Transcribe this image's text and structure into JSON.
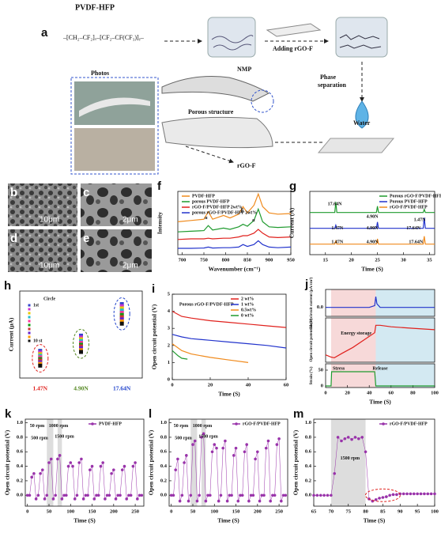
{
  "diagram": {
    "label": "a",
    "polymer": "PVDF-HFP",
    "formula": "–[CH₂–CF₂]ₓ–[CF₂–CF(CF₃)]ᵧ–",
    "solvent": "NMP",
    "step_add": "Adding rGO-F",
    "step_phase": [
      "Phase",
      "separation"
    ],
    "water": "Water",
    "photos": "Photos",
    "porous": "Porous structure",
    "filler": "rGO-F"
  },
  "images": [
    {
      "label": "b",
      "scale": "10μm"
    },
    {
      "label": "c",
      "scale": "2μm"
    },
    {
      "label": "d",
      "scale": "10μm"
    },
    {
      "label": "e",
      "scale": "2μm"
    }
  ],
  "chart_data": [
    {
      "type": "line",
      "label": "f",
      "xlabel": "Wavenumber (cm⁻¹)",
      "ylabel": "Intensity",
      "xlim": [
        690,
        950
      ],
      "ylim": [
        0,
        10
      ],
      "xticks": [
        700,
        750,
        800,
        850,
        900,
        950
      ],
      "legend": "upper left",
      "x": [
        690,
        720,
        750,
        760,
        770,
        795,
        810,
        830,
        840,
        850,
        865,
        875,
        885,
        900,
        920,
        950
      ],
      "series": [
        {
          "name": "PVDF-HFP",
          "color": "#f08a1c",
          "values": [
            5.2,
            5.4,
            5.6,
            6.8,
            5.6,
            6.2,
            5.8,
            6.4,
            7.6,
            6.6,
            7.8,
            9.6,
            7.6,
            6.6,
            6.4,
            6.5
          ]
        },
        {
          "name": "porous PVDF-HFP",
          "color": "#1f9a2e",
          "values": [
            3.6,
            3.7,
            3.8,
            4.6,
            3.9,
            4.2,
            4.0,
            4.4,
            4.8,
            4.5,
            5.4,
            7.2,
            5.2,
            4.4,
            4.3,
            4.4
          ]
        },
        {
          "name": "rGO-F/PVDF-HFP 2wt%",
          "color": "#e0201c",
          "values": [
            2.4,
            2.5,
            2.5,
            2.6,
            2.5,
            2.6,
            2.6,
            2.8,
            3.0,
            3.0,
            3.4,
            4.0,
            3.4,
            2.8,
            2.7,
            2.8
          ]
        },
        {
          "name": "porous rGO-F/PVDF-HFP 2wt%",
          "color": "#2233cc",
          "values": [
            1.0,
            1.0,
            1.05,
            1.2,
            1.05,
            1.1,
            1.1,
            1.2,
            1.6,
            1.3,
            1.6,
            2.2,
            1.6,
            1.2,
            1.1,
            1.2
          ]
        }
      ],
      "annotations": [
        "α",
        "β",
        "α"
      ]
    },
    {
      "type": "line",
      "label": "g",
      "xlabel": "Time (S)",
      "ylabel": "Current (A)",
      "xlim": [
        12,
        36
      ],
      "ylim": [
        0,
        12
      ],
      "xticks": [
        15,
        20,
        25,
        30,
        35
      ],
      "legend": "upper right",
      "x": [
        12,
        16.8,
        17,
        17.2,
        24.8,
        25,
        25.2,
        33.8,
        34,
        34.2,
        36
      ],
      "series": [
        {
          "name": "Porous rGO-F/PVDF-HFP",
          "color": "#1f9a2e",
          "values": [
            8,
            8,
            10,
            8,
            8,
            9.2,
            8,
            8,
            8.6,
            8,
            8
          ]
        },
        {
          "name": "Porous PVDF-HFP",
          "color": "#2233cc",
          "values": [
            5,
            5,
            5.6,
            5,
            5,
            6.2,
            5,
            5,
            7,
            5,
            5
          ]
        },
        {
          "name": "rGO-F/PVDF-HFP",
          "color": "#f08a1c",
          "values": [
            2,
            2,
            2.6,
            2,
            2,
            3,
            2,
            2,
            3.5,
            2,
            2
          ]
        }
      ],
      "annotations": [
        "17.64N",
        "4.90N",
        "1.47N",
        "1.47N",
        "4.90N",
        "17.64N",
        "1.47N",
        "4.90N",
        "17.64N"
      ]
    },
    {
      "type": "dot",
      "label": "h",
      "ylabel": "Current (μA)",
      "ylim": [
        0,
        4
      ],
      "legend": "upper left",
      "legend_title": "Circle",
      "categories": [
        "1.47N",
        "4.90N",
        "17.64N"
      ],
      "category_colors": [
        "#e0201c",
        "#558822",
        "#2244cc"
      ],
      "series": [
        {
          "name": "1st",
          "color": "#3344cc",
          "values": [
            1.25,
            1.95,
            3.4
          ]
        },
        {
          "color": "#cc33cc",
          "values": [
            1.17,
            1.86,
            3.3
          ]
        },
        {
          "color": "#e6c800",
          "values": [
            1.1,
            1.78,
            3.2
          ]
        },
        {
          "color": "#22bbcc",
          "values": [
            1.02,
            1.7,
            3.1
          ]
        },
        {
          "color": "#ff3399",
          "values": [
            0.95,
            1.62,
            3.0
          ]
        },
        {
          "color": "#119911",
          "values": [
            0.87,
            1.53,
            2.9
          ]
        },
        {
          "color": "#cc3333",
          "values": [
            0.8,
            1.45,
            2.8
          ]
        },
        {
          "color": "#6622cc",
          "values": [
            0.72,
            1.37,
            2.7
          ]
        },
        {
          "color": "#ff9900",
          "values": [
            0.65,
            1.28,
            2.6
          ]
        },
        {
          "name": "10 st",
          "color": "#111111",
          "values": [
            0.57,
            1.2,
            2.5
          ]
        }
      ]
    },
    {
      "type": "line",
      "label": "i",
      "xlabel": "Time (S)",
      "ylabel": "Open circuit potential (V)",
      "xlim": [
        0,
        60
      ],
      "ylim": [
        0,
        5
      ],
      "xticks": [
        0,
        20,
        40,
        60
      ],
      "yticks": [
        0,
        1,
        2,
        3,
        4,
        5
      ],
      "legend": "upper right",
      "series": [
        {
          "name": "2 wt%",
          "color": "#e0201c",
          "x": [
            0,
            5,
            10,
            20,
            30,
            40,
            50,
            60
          ],
          "values": [
            4.0,
            3.7,
            3.6,
            3.45,
            3.35,
            3.25,
            3.15,
            3.05
          ]
        },
        {
          "name": "1 wt%",
          "color": "#2233cc",
          "x": [
            0,
            5,
            10,
            20,
            30,
            40,
            50,
            60
          ],
          "values": [
            2.65,
            2.5,
            2.4,
            2.3,
            2.2,
            2.1,
            2.0,
            1.85
          ]
        },
        {
          "name": "0.5wt%",
          "color": "#f08a1c",
          "x": [
            0,
            5,
            10,
            20,
            30,
            40
          ],
          "values": [
            2.1,
            1.7,
            1.5,
            1.3,
            1.15,
            1.0
          ]
        },
        {
          "name": "0 wt%",
          "color": "#1f9a2e",
          "x": [
            0,
            3,
            5,
            8
          ],
          "values": [
            1.7,
            1.4,
            1.25,
            1.2
          ]
        }
      ],
      "annotations": [
        "Porous rGO-F/PVDF-HFP"
      ]
    },
    {
      "type": "line",
      "label": "j",
      "ylabel": "Short circuit current (μA/cm²)",
      "xlim": [
        0,
        100
      ],
      "ylim": [
        -0.5,
        1
      ],
      "yticks": [
        {
          "value": 0,
          "label": "0.0"
        }
      ],
      "shaded": [
        {
          "range": [
            5,
            46
          ],
          "color": "#f7d9d9"
        },
        {
          "range": [
            46,
            100
          ],
          "color": "#d3e9f2"
        }
      ],
      "x": [
        0,
        5,
        10,
        20,
        30,
        40,
        45,
        46,
        47,
        50,
        60,
        70,
        80,
        90,
        100
      ],
      "series": [
        {
          "color": "#2233cc",
          "values": [
            0,
            0,
            0,
            0,
            0,
            0,
            0.1,
            0.6,
            0.2,
            0,
            0,
            0,
            0,
            0,
            0
          ]
        }
      ]
    },
    {
      "type": "line",
      "ylabel": "Open circuit potential (V)",
      "xlim": [
        0,
        100
      ],
      "ylim": [
        -1,
        5
      ],
      "shaded": [
        {
          "range": [
            5,
            46
          ],
          "color": "#f7d9d9"
        },
        {
          "range": [
            46,
            100
          ],
          "color": "#d3e9f2"
        }
      ],
      "x": [
        0,
        5,
        8,
        15,
        25,
        35,
        45,
        46,
        50,
        60,
        80,
        100
      ],
      "series": [
        {
          "color": "#e0201c",
          "values": [
            0,
            -0.3,
            -0.4,
            0.2,
            1,
            2,
            3,
            4,
            4,
            3.8,
            3.6,
            3.4
          ]
        }
      ],
      "annotations": [
        "Energy storage"
      ]
    },
    {
      "type": "line",
      "xlabel": "Time (S)",
      "ylabel": "Strain (%)",
      "xlim": [
        0,
        100
      ],
      "ylim": [
        -5,
        70
      ],
      "xticks": [
        0,
        20,
        40,
        60,
        80,
        100
      ],
      "yticks": [
        0,
        50
      ],
      "shaded": [
        {
          "range": [
            5,
            46
          ],
          "color": "#f7d9d9"
        },
        {
          "range": [
            46,
            100
          ],
          "color": "#d3e9f2"
        }
      ],
      "x": [
        0,
        5,
        5.5,
        45,
        46,
        100
      ],
      "series": [
        {
          "color": "#1f9a2e",
          "values": [
            0,
            0,
            45,
            45,
            0,
            0
          ]
        }
      ],
      "annotations": [
        "Stress",
        "Release"
      ]
    },
    {
      "type": "line",
      "markers": true,
      "label": "k",
      "xlabel": "Time (S)",
      "ylabel": "Open circuit potential (V)",
      "xlim": [
        -5,
        270
      ],
      "ylim": [
        -0.15,
        1.05
      ],
      "xticks": [
        0,
        50,
        100,
        150,
        200,
        250
      ],
      "yticks": [
        {
          "value": 0,
          "label": "0.0"
        },
        0.2,
        0.4,
        0.6,
        0.8,
        {
          "value": 1,
          "label": "1.0"
        }
      ],
      "legend": "upper right",
      "shaded": [
        {
          "range": [
            45,
            60
          ],
          "color": "#dddddd"
        },
        {
          "range": [
            70,
            80
          ],
          "color": "#dddddd"
        }
      ],
      "x": [
        0,
        5,
        10,
        15,
        20,
        25,
        30,
        35,
        40,
        45,
        50,
        55,
        60,
        65,
        70,
        75,
        80,
        85,
        90,
        95,
        100,
        105,
        110,
        115,
        120,
        125,
        130,
        135,
        140,
        145,
        150,
        155,
        160,
        165,
        170,
        175,
        180,
        185,
        190,
        195,
        200,
        205,
        210,
        215,
        220,
        225,
        230,
        235,
        240,
        245,
        250,
        255,
        260,
        265
      ],
      "series": [
        {
          "name": "PVDF-HFP",
          "color": "#9933aa",
          "values": [
            0,
            0,
            0.25,
            0.3,
            -0.05,
            0,
            0.3,
            0.35,
            -0.05,
            0,
            0.45,
            0.5,
            -0.05,
            0,
            0.5,
            0.55,
            -0.05,
            0,
            0,
            0.4,
            0.45,
            0.4,
            -0.05,
            0,
            0.45,
            0.5,
            -0.05,
            0,
            0,
            0.35,
            0.4,
            -0.05,
            0,
            0,
            0.4,
            0.45,
            -0.05,
            0,
            0,
            0.3,
            0.35,
            -0.05,
            0,
            0,
            0.35,
            0.4,
            -0.05,
            0,
            0,
            0.4,
            0.45,
            -0.05,
            0,
            0
          ]
        }
      ],
      "annotations": [
        "50 rpm",
        "500 rpm",
        "1000 rpm",
        "1500 rpm"
      ]
    },
    {
      "type": "line",
      "markers": true,
      "label": "l",
      "xlabel": "Time (S)",
      "ylabel": "Open circuit potential (V)",
      "xlim": [
        -5,
        270
      ],
      "ylim": [
        -0.15,
        1.05
      ],
      "xticks": [
        0,
        50,
        100,
        150,
        200,
        250
      ],
      "yticks": [
        {
          "value": 0,
          "label": "0.0"
        },
        0.2,
        0.4,
        0.6,
        0.8,
        {
          "value": 1,
          "label": "1.0"
        }
      ],
      "legend": "upper right",
      "shaded": [
        {
          "range": [
            45,
            60
          ],
          "color": "#dddddd"
        },
        {
          "range": [
            70,
            80
          ],
          "color": "#dddddd"
        }
      ],
      "x": [
        0,
        5,
        10,
        15,
        20,
        25,
        30,
        35,
        40,
        45,
        50,
        55,
        60,
        65,
        70,
        75,
        80,
        85,
        90,
        95,
        100,
        105,
        110,
        115,
        120,
        125,
        130,
        135,
        140,
        145,
        150,
        155,
        160,
        165,
        170,
        175,
        180,
        185,
        190,
        195,
        200,
        205,
        210,
        215,
        220,
        225,
        230,
        235,
        240,
        245,
        250,
        255,
        260,
        265
      ],
      "series": [
        {
          "name": "rGO-F/PVDF-HFP",
          "color": "#9933aa",
          "values": [
            0,
            0,
            0.35,
            0.5,
            -0.08,
            0,
            0.45,
            0.55,
            -0.08,
            0,
            0.7,
            0.75,
            -0.08,
            0,
            0.8,
            0.85,
            -0.08,
            0,
            0,
            0.6,
            0.7,
            0.65,
            -0.08,
            0,
            0.65,
            0.75,
            -0.08,
            0,
            0,
            0.55,
            0.65,
            -0.08,
            0,
            0,
            0.6,
            0.7,
            -0.08,
            0,
            0,
            0.5,
            0.6,
            -0.08,
            0,
            0,
            0.65,
            0.75,
            -0.08,
            0,
            0,
            0.7,
            0.78,
            -0.08,
            0,
            0
          ]
        }
      ],
      "annotations": [
        "50 rpm",
        "500 rpm",
        "1000 rpm",
        "1500 rpm"
      ]
    },
    {
      "type": "line",
      "markers": true,
      "label": "m",
      "xlabel": "Time (S)",
      "ylabel": "Open circuit potential (V)",
      "xlim": [
        65,
        100
      ],
      "ylim": [
        -0.15,
        1.05
      ],
      "xticks": [
        65,
        70,
        75,
        80,
        85,
        90,
        95,
        100
      ],
      "yticks": [
        {
          "value": 0,
          "label": "0.0"
        },
        0.2,
        0.4,
        0.6,
        0.8,
        {
          "value": 1,
          "label": "1.0"
        }
      ],
      "legend": "upper right",
      "shaded": [
        {
          "range": [
            70,
            80
          ],
          "color": "#dddddd"
        }
      ],
      "x": [
        65,
        66,
        67,
        68,
        69,
        70,
        71,
        72,
        73,
        74,
        75,
        76,
        77,
        78,
        79,
        80,
        81,
        82,
        83,
        84,
        85,
        86,
        87,
        88,
        89,
        90,
        91,
        92,
        93,
        94,
        95,
        96,
        97,
        98,
        99,
        100
      ],
      "series": [
        {
          "name": "rGO-F/PVDF-HFP",
          "color": "#9933aa",
          "values": [
            0,
            0,
            0,
            0,
            0,
            0,
            0.3,
            0.8,
            0.75,
            0.78,
            0.8,
            0.77,
            0.8,
            0.78,
            0.8,
            0.6,
            -0.05,
            -0.08,
            -0.06,
            -0.04,
            -0.03,
            -0.02,
            0,
            0.01,
            0.01,
            0.02,
            0.02,
            0.02,
            0.02,
            0.02,
            0.02,
            0.02,
            0.02,
            0.02,
            0.02,
            0.02
          ]
        }
      ],
      "annotations": [
        "1500 rpm"
      ]
    }
  ]
}
